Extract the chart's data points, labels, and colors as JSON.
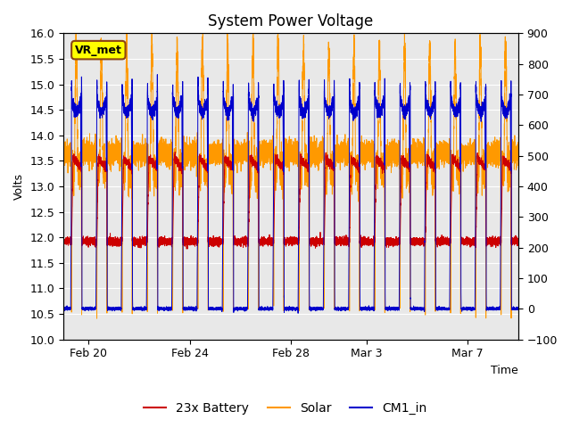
{
  "title": "System Power Voltage",
  "xlabel": "Time",
  "ylabel": "Volts",
  "ylim": [
    10.0,
    16.0
  ],
  "ylim2": [
    -100,
    900
  ],
  "yticks_left": [
    10.0,
    10.5,
    11.0,
    11.5,
    12.0,
    12.5,
    13.0,
    13.5,
    14.0,
    14.5,
    15.0,
    15.5,
    16.0
  ],
  "yticks_right": [
    -100,
    0,
    100,
    200,
    300,
    400,
    500,
    600,
    700,
    800,
    900
  ],
  "xtick_pos": [
    1,
    5,
    9,
    12,
    16
  ],
  "xtick_labels": [
    "Feb 20",
    "Feb 24",
    "Feb 28",
    "Mar 3",
    "Mar 7"
  ],
  "xlim": [
    0,
    18
  ],
  "bg_color": "#e8e8e8",
  "grid_color": "#ffffff",
  "battery_color": "#cc0000",
  "solar_color": "#ff9900",
  "cm1_color": "#0000cc",
  "legend_entries": [
    "23x Battery",
    "Solar",
    "CM1_in"
  ],
  "vr_met_label": "VR_met",
  "vr_met_bg": "#ffff00",
  "vr_met_edge": "#8B4513",
  "title_fontsize": 12,
  "label_fontsize": 9,
  "legend_fontsize": 10,
  "day_start": 0.32,
  "day_end": 0.72,
  "solar_night": 13.65,
  "solar_peak": 15.7,
  "battery_night": 11.92,
  "battery_day": 13.55,
  "cm1_baseline": 10.6,
  "cm1_peak": 14.75
}
